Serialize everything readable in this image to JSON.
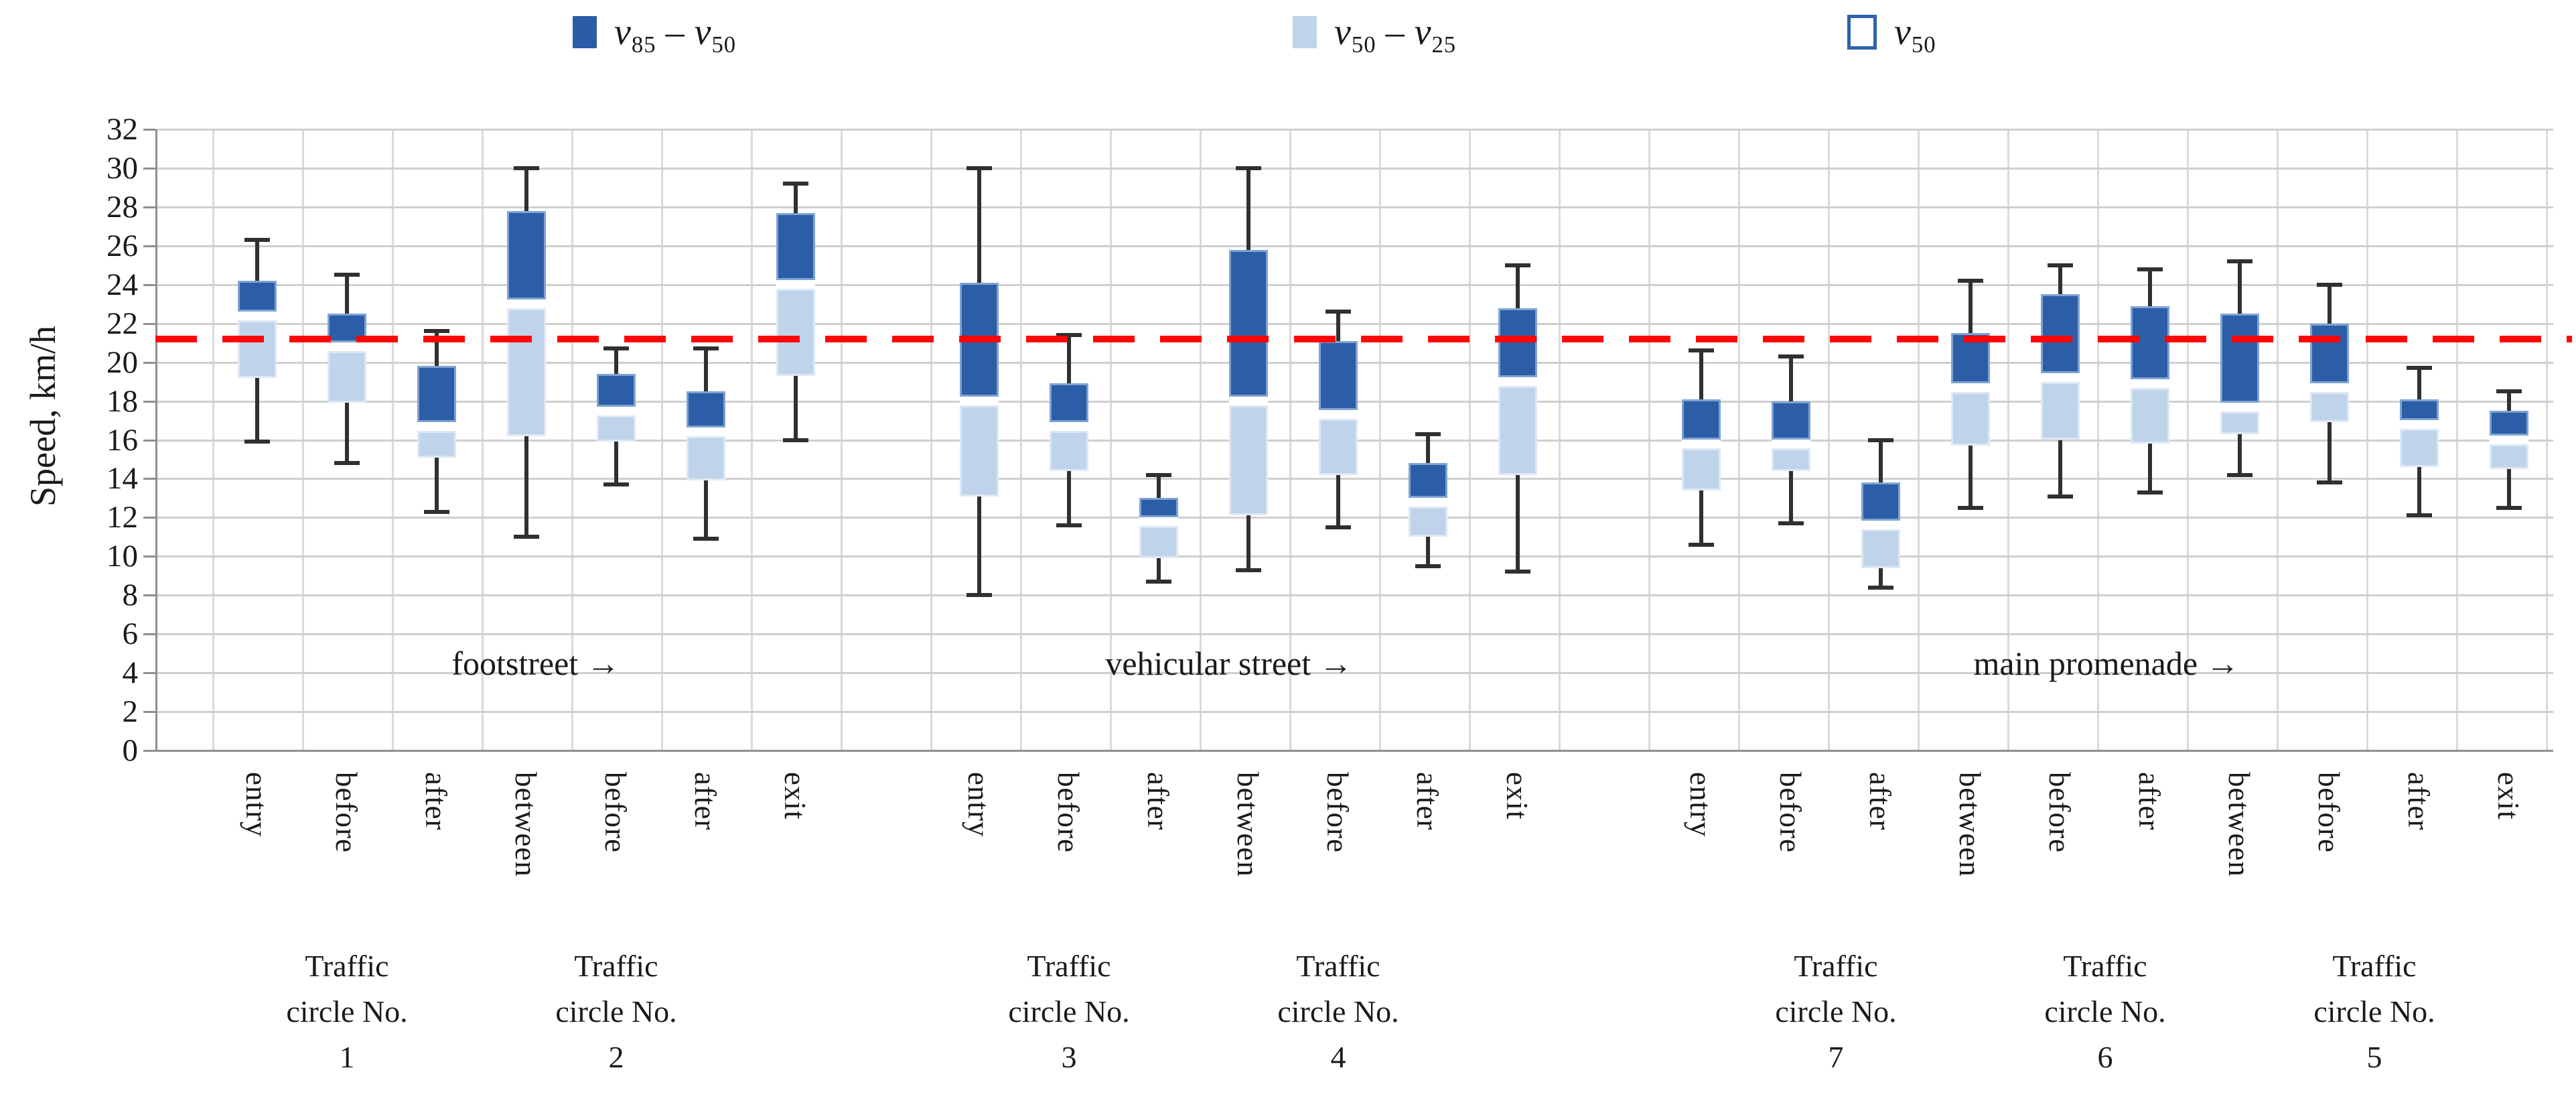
{
  "legend": [
    {
      "var_a": "v",
      "sub_a": "85",
      "dash": "–",
      "var_b": "v",
      "sub_b": "50"
    },
    {
      "var_a": "v",
      "sub_a": "50",
      "dash": "–",
      "var_b": "v",
      "sub_b": "25"
    },
    {
      "var_a": "v",
      "sub_a": "50"
    }
  ],
  "chart_data": {
    "type": "box",
    "title": "",
    "xlabel": "",
    "ylabel": "Speed, km/h",
    "ylim": [
      0,
      32
    ],
    "ytick_step": 2,
    "grid": "on",
    "legend_position": "top",
    "reference_line": {
      "value": 21.2,
      "color": "#ff0000",
      "style": "dashed"
    },
    "series_meaning": {
      "dark_box": "v50 to v85",
      "light_box": "v25 to v50",
      "white_band": "v50",
      "whiskers": "min / max"
    },
    "colors": {
      "dark_box": "#2B5EA7",
      "light_box": "#BFD3EA",
      "whisker": "#303030",
      "reference": "#ff0505"
    },
    "street_annotations": [
      {
        "text": "footstreet →"
      },
      {
        "text": "vehicular street →"
      },
      {
        "text": "main promenade →"
      }
    ],
    "circle_labels": [
      {
        "line1": "Traffic",
        "line2": "circle No.",
        "line3": "1"
      },
      {
        "line1": "Traffic",
        "line2": "circle No.",
        "line3": "2"
      },
      {
        "line1": "Traffic",
        "line2": "circle No.",
        "line3": "3"
      },
      {
        "line1": "Traffic",
        "line2": "circle No.",
        "line3": "4"
      },
      {
        "line1": "Traffic",
        "line2": "circle No.",
        "line3": "7"
      },
      {
        "line1": "Traffic",
        "line2": "circle No.",
        "line3": "6"
      },
      {
        "line1": "Traffic",
        "line2": "circle No.",
        "line3": "5"
      }
    ],
    "boxes": [
      {
        "category": "entry",
        "street": "footstreet",
        "low": 15.9,
        "q25": 19.2,
        "q50": 22.4,
        "q85": 24.2,
        "high": 26.3
      },
      {
        "category": "before",
        "street": "footstreet",
        "low": 14.8,
        "q25": 17.9,
        "q50": 20.8,
        "q85": 22.5,
        "high": 24.5
      },
      {
        "category": "after",
        "street": "footstreet",
        "low": 12.3,
        "q25": 15.1,
        "q50": 16.7,
        "q85": 19.8,
        "high": 21.6
      },
      {
        "category": "between",
        "street": "footstreet",
        "low": 11.0,
        "q25": 16.2,
        "q50": 23.0,
        "q85": 27.8,
        "high": 30.0
      },
      {
        "category": "before",
        "street": "footstreet",
        "low": 13.7,
        "q25": 15.9,
        "q50": 17.5,
        "q85": 19.4,
        "high": 20.7
      },
      {
        "category": "after",
        "street": "footstreet",
        "low": 10.9,
        "q25": 13.9,
        "q50": 16.4,
        "q85": 18.5,
        "high": 20.7
      },
      {
        "category": "exit",
        "street": "footstreet",
        "low": 16.0,
        "q25": 19.3,
        "q50": 24.0,
        "q85": 27.7,
        "high": 29.2
      },
      {
        "category": "entry",
        "street": "vehicular",
        "low": 8.0,
        "q25": 13.1,
        "q50": 18.0,
        "q85": 24.1,
        "high": 30.0
      },
      {
        "category": "before",
        "street": "vehicular",
        "low": 11.6,
        "q25": 14.4,
        "q50": 16.7,
        "q85": 18.9,
        "high": 21.4
      },
      {
        "category": "after",
        "street": "vehicular",
        "low": 8.7,
        "q25": 9.9,
        "q50": 11.8,
        "q85": 13.0,
        "high": 14.2
      },
      {
        "category": "between",
        "street": "vehicular",
        "low": 9.3,
        "q25": 12.1,
        "q50": 18.0,
        "q85": 25.8,
        "high": 30.0
      },
      {
        "category": "before",
        "street": "vehicular",
        "low": 11.5,
        "q25": 14.2,
        "q50": 17.3,
        "q85": 21.1,
        "high": 22.6
      },
      {
        "category": "after",
        "street": "vehicular",
        "low": 9.5,
        "q25": 11.0,
        "q50": 12.8,
        "q85": 14.8,
        "high": 16.3
      },
      {
        "category": "exit",
        "street": "vehicular",
        "low": 9.2,
        "q25": 14.2,
        "q50": 19.0,
        "q85": 22.8,
        "high": 25.0
      },
      {
        "category": "entry",
        "street": "main promenade",
        "low": 10.6,
        "q25": 13.4,
        "q50": 15.8,
        "q85": 18.1,
        "high": 20.6
      },
      {
        "category": "before",
        "street": "main promenade",
        "low": 11.7,
        "q25": 14.4,
        "q50": 15.8,
        "q85": 18.0,
        "high": 20.3
      },
      {
        "category": "after",
        "street": "main promenade",
        "low": 8.4,
        "q25": 9.4,
        "q50": 11.6,
        "q85": 13.8,
        "high": 16.0
      },
      {
        "category": "between",
        "street": "main promenade",
        "low": 12.5,
        "q25": 15.7,
        "q50": 18.7,
        "q85": 21.5,
        "high": 24.2
      },
      {
        "category": "before",
        "street": "main promenade",
        "low": 13.1,
        "q25": 16.0,
        "q50": 19.2,
        "q85": 23.5,
        "high": 25.0
      },
      {
        "category": "after",
        "street": "main promenade",
        "low": 13.3,
        "q25": 15.8,
        "q50": 18.9,
        "q85": 22.9,
        "high": 24.8
      },
      {
        "category": "between",
        "street": "main promenade",
        "low": 14.2,
        "q25": 16.3,
        "q50": 17.7,
        "q85": 22.5,
        "high": 25.2
      },
      {
        "category": "before",
        "street": "main promenade",
        "low": 13.8,
        "q25": 16.9,
        "q50": 18.7,
        "q85": 22.0,
        "high": 24.0
      },
      {
        "category": "after",
        "street": "main promenade",
        "low": 12.1,
        "q25": 14.6,
        "q50": 16.8,
        "q85": 18.1,
        "high": 19.7
      },
      {
        "category": "exit",
        "street": "main promenade",
        "low": 12.5,
        "q25": 14.5,
        "q50": 16.0,
        "q85": 17.5,
        "high": 18.5
      }
    ]
  }
}
